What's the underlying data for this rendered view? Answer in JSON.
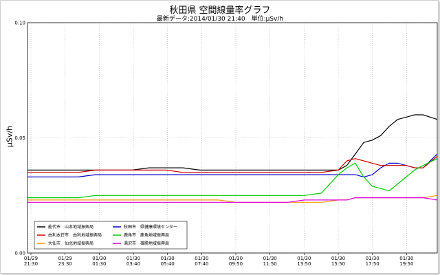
{
  "chart_data": {
    "type": "line",
    "title": "秋田県 空間線量率グラフ",
    "subtitle": "最新データ:2014/01/30 21:40　単位:μSv/h",
    "ylabel": "μSv/h",
    "ylim": [
      0.0,
      0.1
    ],
    "yticks": [
      "0.00",
      "0.05",
      "0.10"
    ],
    "grid": true,
    "legend_position": "bottom-left",
    "xtick_labels": [
      [
        "01/29",
        "21:30"
      ],
      [
        "01/29",
        "23:30"
      ],
      [
        "01/30",
        "01:30"
      ],
      [
        "01/30",
        "03:40"
      ],
      [
        "01/30",
        "05:40"
      ],
      [
        "01/30",
        "07:40"
      ],
      [
        "01/30",
        "09:50"
      ],
      [
        "01/30",
        "11:50"
      ],
      [
        "01/30",
        "13:50"
      ],
      [
        "01/30",
        "15:50"
      ],
      [
        "01/30",
        "17:50"
      ],
      [
        "01/30",
        "19:50"
      ]
    ],
    "x": [
      "01/29 21:30",
      "01/29 22:30",
      "01/29 23:30",
      "01/30 00:30",
      "01/30 01:30",
      "01/30 02:35",
      "01/30 03:40",
      "01/30 04:40",
      "01/30 05:40",
      "01/30 06:40",
      "01/30 07:40",
      "01/30 08:45",
      "01/30 09:50",
      "01/30 10:50",
      "01/30 11:50",
      "01/30 12:50",
      "01/30 13:50",
      "01/30 14:50",
      "01/30 15:50",
      "01/30 16:20",
      "01/30 16:50",
      "01/30 17:20",
      "01/30 17:50",
      "01/30 18:20",
      "01/30 18:50",
      "01/30 19:20",
      "01/30 19:50",
      "01/30 20:20",
      "01/30 20:50",
      "01/30 21:40"
    ],
    "series": [
      {
        "name": "能代市　山本地域振興局",
        "color": "#000000",
        "values": [
          0.036,
          0.036,
          0.036,
          0.036,
          0.036,
          0.036,
          0.036,
          0.037,
          0.037,
          0.037,
          0.036,
          0.036,
          0.036,
          0.036,
          0.036,
          0.036,
          0.036,
          0.036,
          0.036,
          0.038,
          0.043,
          0.048,
          0.049,
          0.051,
          0.055,
          0.058,
          0.059,
          0.06,
          0.06,
          0.058
        ]
      },
      {
        "name": "秋田市　県健康環境センター",
        "color": "#0000cc",
        "values": [
          0.033,
          0.033,
          0.033,
          0.033,
          0.034,
          0.034,
          0.034,
          0.034,
          0.034,
          0.034,
          0.034,
          0.034,
          0.034,
          0.034,
          0.034,
          0.034,
          0.034,
          0.034,
          0.034,
          0.034,
          0.034,
          0.033,
          0.034,
          0.037,
          0.039,
          0.039,
          0.038,
          0.037,
          0.037,
          0.043
        ]
      },
      {
        "name": "由利本荘市　由利地域振興局",
        "color": "#cc0000",
        "values": [
          0.035,
          0.035,
          0.035,
          0.035,
          0.036,
          0.036,
          0.036,
          0.036,
          0.036,
          0.035,
          0.035,
          0.035,
          0.035,
          0.035,
          0.035,
          0.035,
          0.035,
          0.035,
          0.036,
          0.04,
          0.041,
          0.04,
          0.039,
          0.038,
          0.038,
          0.038,
          0.038,
          0.037,
          0.037,
          0.042
        ]
      },
      {
        "name": "鹿角市　鹿角地域振興局",
        "color": "#00cc00",
        "values": [
          0.024,
          0.024,
          0.024,
          0.024,
          0.025,
          0.025,
          0.025,
          0.025,
          0.025,
          0.025,
          0.025,
          0.025,
          0.025,
          0.025,
          0.025,
          0.025,
          0.025,
          0.026,
          0.034,
          0.037,
          0.039,
          0.033,
          0.029,
          0.028,
          0.027,
          0.03,
          0.033,
          0.036,
          0.038,
          0.041
        ]
      },
      {
        "name": "大仙市　仙北地域振興局",
        "color": "#ff9900",
        "values": [
          0.023,
          0.023,
          0.023,
          0.023,
          0.023,
          0.023,
          0.023,
          0.023,
          0.023,
          0.023,
          0.023,
          0.023,
          0.022,
          0.022,
          0.022,
          0.022,
          0.022,
          0.022,
          0.023,
          0.023,
          0.024,
          0.024,
          0.024,
          0.024,
          0.024,
          0.024,
          0.024,
          0.024,
          0.024,
          0.025
        ]
      },
      {
        "name": "湯沢市　雄勝地域振興局",
        "color": "#e000e0",
        "values": [
          0.022,
          0.022,
          0.022,
          0.022,
          0.022,
          0.022,
          0.022,
          0.022,
          0.022,
          0.022,
          0.022,
          0.022,
          0.022,
          0.022,
          0.022,
          0.022,
          0.023,
          0.023,
          0.023,
          0.023,
          0.024,
          0.024,
          0.024,
          0.024,
          0.024,
          0.024,
          0.024,
          0.024,
          0.024,
          0.023
        ]
      }
    ]
  }
}
